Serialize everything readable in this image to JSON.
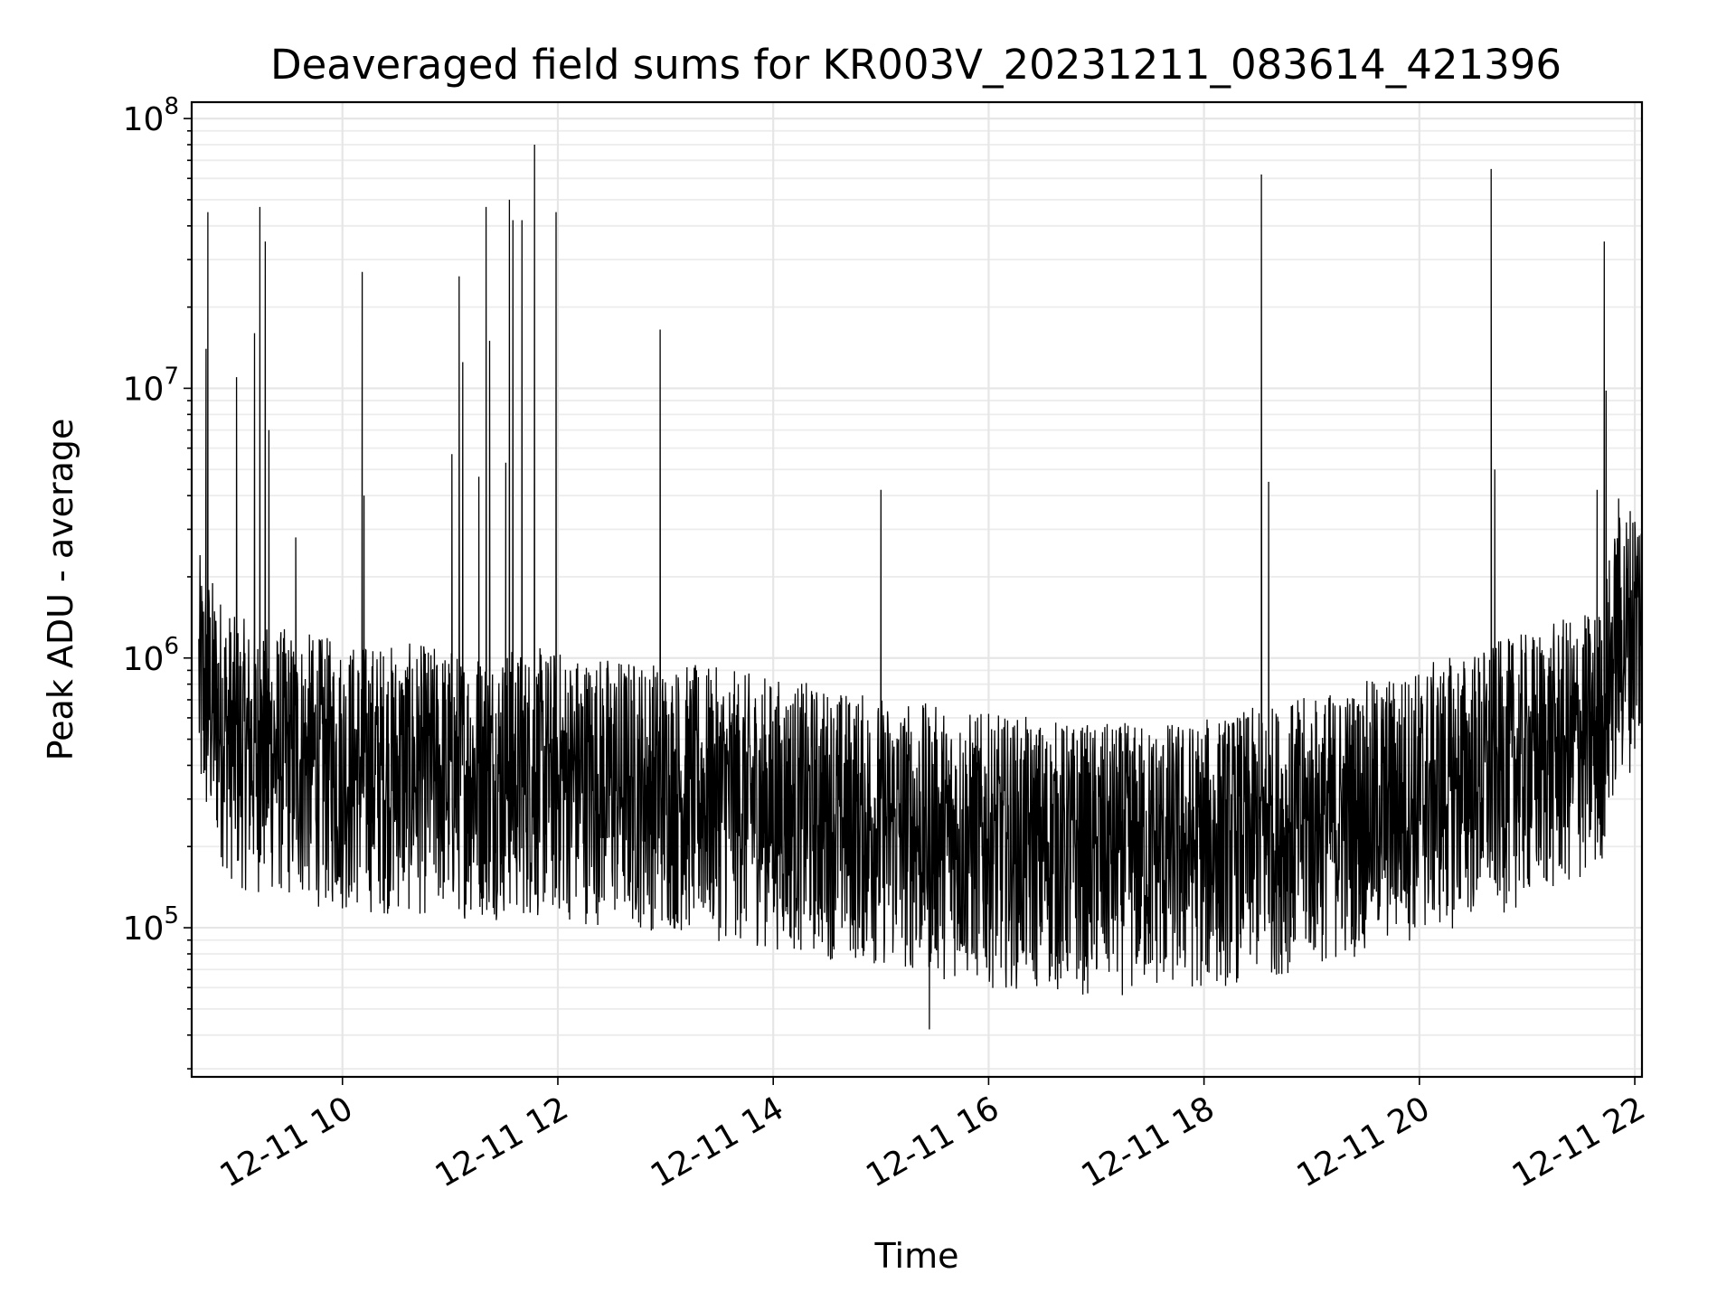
{
  "chart_data": {
    "type": "line",
    "title": "Deaveraged field sums for KR003V_20231211_083614_421396",
    "xlabel": "Time",
    "ylabel": "Peak ADU - average",
    "x_axis": {
      "kind": "time",
      "range": [
        "2023-12-11 08:36",
        "2023-12-11 22:04"
      ],
      "ticks": [
        "12-11 10",
        "12-11 12",
        "12-11 14",
        "12-11 16",
        "12-11 18",
        "12-11 20",
        "12-11 22"
      ]
    },
    "y_axis": {
      "scale": "log",
      "range": [
        28000,
        115000000
      ],
      "ticks": [
        {
          "base": "10",
          "exp": "5",
          "value": 100000
        },
        {
          "base": "10",
          "exp": "6",
          "value": 1000000
        },
        {
          "base": "10",
          "exp": "7",
          "value": 10000000
        },
        {
          "base": "10",
          "exp": "8",
          "value": 100000000
        }
      ]
    },
    "grid": "on (major and minor)",
    "line_color": "#000000",
    "background": {
      "baseline": [
        [
          "2023-12-11 08:40",
          950000
        ],
        [
          "2023-12-11 09:00",
          550000
        ],
        [
          "2023-12-11 10:00",
          450000
        ],
        [
          "2023-12-11 11:00",
          430000
        ],
        [
          "2023-12-11 12:00",
          420000
        ],
        [
          "2023-12-11 13:00",
          380000
        ],
        [
          "2023-12-11 14:00",
          330000
        ],
        [
          "2023-12-11 15:00",
          280000
        ],
        [
          "2023-12-11 16:00",
          240000
        ],
        [
          "2023-12-11 17:00",
          220000
        ],
        [
          "2023-12-11 18:00",
          230000
        ],
        [
          "2023-12-11 19:00",
          280000
        ],
        [
          "2023-12-11 20:00",
          360000
        ],
        [
          "2023-12-11 21:00",
          480000
        ],
        [
          "2023-12-11 21:40",
          600000
        ],
        [
          "2023-12-11 21:50",
          1300000
        ],
        [
          "2023-12-11 22:04",
          1700000
        ]
      ],
      "noise_low_factor": 0.25,
      "noise_high_factor": 2.6
    },
    "spikes": [
      [
        "2023-12-11 08:44",
        14000000
      ],
      [
        "2023-12-11 08:45",
        45000000
      ],
      [
        "2023-12-11 09:01",
        11000000
      ],
      [
        "2023-12-11 09:11",
        16000000
      ],
      [
        "2023-12-11 09:14",
        47000000
      ],
      [
        "2023-12-11 09:17",
        35000000
      ],
      [
        "2023-12-11 09:19",
        7000000
      ],
      [
        "2023-12-11 09:34",
        2800000
      ],
      [
        "2023-12-11 10:11",
        27000000
      ],
      [
        "2023-12-11 10:12",
        4000000
      ],
      [
        "2023-12-11 11:01",
        5700000
      ],
      [
        "2023-12-11 11:05",
        26000000
      ],
      [
        "2023-12-11 11:07",
        12500000
      ],
      [
        "2023-12-11 11:16",
        4700000
      ],
      [
        "2023-12-11 11:20",
        47000000
      ],
      [
        "2023-12-11 11:22",
        15000000
      ],
      [
        "2023-12-11 11:31",
        5300000
      ],
      [
        "2023-12-11 11:33",
        50000000
      ],
      [
        "2023-12-11 11:35",
        42000000
      ],
      [
        "2023-12-11 11:40",
        42000000
      ],
      [
        "2023-12-11 11:47",
        80000000
      ],
      [
        "2023-12-11 11:59",
        45000000
      ],
      [
        "2023-12-11 12:57",
        16500000
      ],
      [
        "2023-12-11 15:00",
        4200000
      ],
      [
        "2023-12-11 18:32",
        62000000
      ],
      [
        "2023-12-11 18:36",
        4500000
      ],
      [
        "2023-12-11 20:40",
        65000000
      ],
      [
        "2023-12-11 20:42",
        5000000
      ],
      [
        "2023-12-11 21:39",
        4200000
      ],
      [
        "2023-12-11 21:43",
        35000000
      ],
      [
        "2023-12-11 21:44",
        9800000
      ],
      [
        "2023-12-11 21:51",
        3900000
      ],
      [
        "2023-12-11 22:00",
        3200000
      ]
    ],
    "minimum": [
      "2023-12-11 15:27",
      42000
    ]
  }
}
